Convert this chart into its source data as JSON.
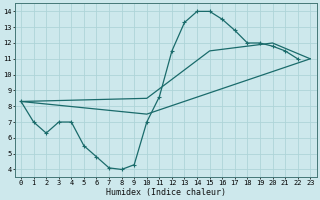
{
  "xlabel": "Humidex (Indice chaleur)",
  "bg_color": "#cde8ec",
  "grid_color": "#aed4d8",
  "line_color": "#1a6b6b",
  "xlim": [
    -0.5,
    23.5
  ],
  "ylim": [
    3.5,
    14.5
  ],
  "xticks": [
    0,
    1,
    2,
    3,
    4,
    5,
    6,
    7,
    8,
    9,
    10,
    11,
    12,
    13,
    14,
    15,
    16,
    17,
    18,
    19,
    20,
    21,
    22,
    23
  ],
  "yticks": [
    4,
    5,
    6,
    7,
    8,
    9,
    10,
    11,
    12,
    13,
    14
  ],
  "line1_x": [
    0,
    1,
    2,
    3,
    4,
    5,
    6,
    7,
    8,
    9,
    10,
    11,
    12,
    13,
    14,
    15,
    16,
    17,
    18,
    19,
    20,
    21,
    22
  ],
  "line1_y": [
    8.3,
    7.0,
    6.3,
    7.0,
    7.0,
    5.5,
    4.8,
    4.1,
    4.0,
    4.3,
    7.0,
    8.6,
    11.5,
    13.3,
    14.0,
    14.0,
    13.5,
    12.8,
    12.0,
    12.0,
    11.8,
    11.5,
    11.0
  ],
  "line2_x": [
    0,
    10,
    23
  ],
  "line2_y": [
    8.3,
    7.5,
    11.0
  ],
  "line3_x": [
    0,
    10,
    15,
    20,
    23
  ],
  "line3_y": [
    8.3,
    8.5,
    11.5,
    12.0,
    11.0
  ],
  "tick_fontsize": 5.0,
  "xlabel_fontsize": 6.0
}
